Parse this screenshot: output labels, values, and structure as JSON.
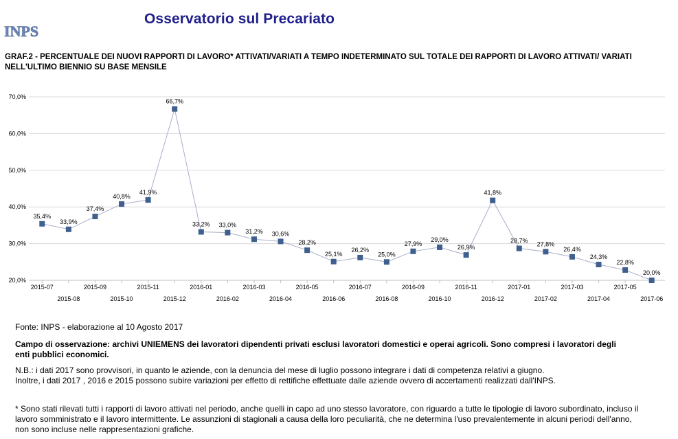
{
  "header": {
    "logo_text": "INPS",
    "title": "Osservatorio sul Precariato"
  },
  "chart_title": "GRAF.2 - PERCENTUALE DEI NUOVI RAPPORTI DI LAVORO* ATTIVATI/VARIATI A TEMPO INDETERMINATO SUL TOTALE DEI RAPPORTI DI LAVORO ATTIVATI/ VARIATI NELL'ULTIMO BIENNIO SU BASE MENSILE",
  "colors": {
    "line": "#a8aec8",
    "marker": "#3f5f8f",
    "grid": "#d9d9d9",
    "title": "#1f1f8c"
  },
  "chart_data": {
    "type": "line",
    "title": "GRAF.2",
    "xlabel": "",
    "ylabel": "",
    "ylim": [
      20,
      70
    ],
    "y_ticks": [
      "20,0%",
      "30,0%",
      "40,0%",
      "50,0%",
      "60,0%",
      "70,0%"
    ],
    "categories": [
      "2015-07",
      "2015-08",
      "2015-09",
      "2015-10",
      "2015-11",
      "2015-12",
      "2016-01",
      "2016-02",
      "2016-03",
      "2016-04",
      "2016-05",
      "2016-06",
      "2016-07",
      "2016-08",
      "2016-09",
      "2016-10",
      "2016-11",
      "2016-12",
      "2017-01",
      "2017-02",
      "2017-03",
      "2017-04",
      "2017-05",
      "2017-06"
    ],
    "values": [
      35.4,
      33.9,
      37.4,
      40.8,
      41.9,
      66.7,
      33.2,
      33.0,
      31.2,
      30.6,
      28.2,
      25.1,
      26.2,
      25.0,
      27.9,
      29.0,
      26.9,
      41.8,
      28.7,
      27.8,
      26.4,
      24.3,
      22.8,
      20.0
    ],
    "labels": [
      "35,4%",
      "33,9%",
      "37,4%",
      "40,8%",
      "41,9%",
      "66,7%",
      "33,2%",
      "33,0%",
      "31,2%",
      "30,6%",
      "28,2%",
      "25,1%",
      "26,2%",
      "25,0%",
      "27,9%",
      "29,0%",
      "26,9%",
      "41,8%",
      "28,7%",
      "27,8%",
      "26,4%",
      "24,3%",
      "22,8%",
      "20,0%"
    ]
  },
  "source": "Fonte: INPS - elaborazione al 10 Agosto 2017",
  "scope": "Campo di osservazione: archivi UNIEMENS dei lavoratori dipendenti privati esclusi lavoratori domestici e operai agricoli. Sono compresi i lavoratori degli enti pubblici economici.",
  "notes": {
    "line1": "N.B.: i dati 2017 sono provvisori, in quanto le aziende, con la denuncia del mese di luglio possono integrare i dati di competenza relativi a giugno.",
    "line2": "Inoltre, i dati 2017 , 2016 e 2015 possono subire variazioni per effetto di rettifiche effettuate dalle aziende ovvero di accertamenti realizzati dall'INPS."
  },
  "footnote": "* Sono stati rilevati tutti i rapporti di lavoro attivati nel periodo, anche quelli in capo ad uno stesso lavoratore, con riguardo a tutte le tipologie di lavoro subordinato, incluso il lavoro somministrato e il lavoro intermittente. Le assunzioni di stagionali a causa della loro peculiarità, che ne determina l'uso prevalentemente in alcuni periodi dell'anno, non sono incluse nelle rappresentazioni grafiche."
}
